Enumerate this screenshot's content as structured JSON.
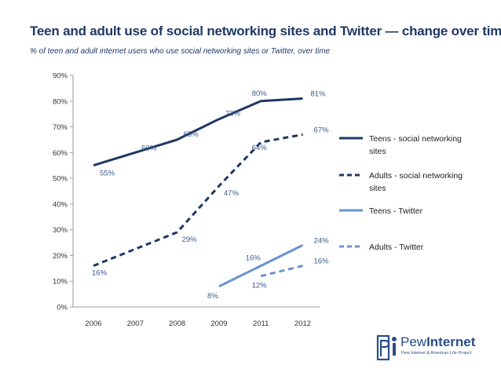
{
  "chart_data": {
    "type": "line",
    "title": "Teen and adult use of social networking sites and Twitter — change over time",
    "subtitle": "% of teen and adult internet users who use social networking sites or Twitter, over time",
    "categories": [
      "2006",
      "2007",
      "2008",
      "2009",
      "2011",
      "2012"
    ],
    "ylim": [
      0,
      90
    ],
    "yticks": [
      "0%",
      "10%",
      "20%",
      "30%",
      "40%",
      "50%",
      "60%",
      "70%",
      "80%",
      "90%"
    ],
    "xlabel": "",
    "ylabel": "",
    "legend_position": "right",
    "series": [
      {
        "name": "Teens - social networking sites",
        "legend_lines": [
          "Teens - social networking",
          "sites"
        ],
        "color": "#1f3864",
        "dash": "solid",
        "values": [
          55,
          60,
          65,
          73,
          80,
          81
        ],
        "labels": [
          "55%",
          "60%",
          "65%",
          "73%",
          "80%",
          "81%"
        ]
      },
      {
        "name": "Adults - social networking sites",
        "legend_lines": [
          "Adults - social networking",
          "sites"
        ],
        "color": "#1f3864",
        "dash": "dashed",
        "values": [
          16,
          null,
          29,
          47,
          64,
          67
        ],
        "labels": [
          "16%",
          null,
          "29%",
          "47%",
          "64%",
          "67%"
        ]
      },
      {
        "name": "Teens - Twitter",
        "legend_lines": [
          "Teens - Twitter"
        ],
        "color": "#6b93cf",
        "dash": "solid",
        "values": [
          null,
          null,
          null,
          8,
          16,
          24
        ],
        "labels": [
          null,
          null,
          null,
          "8%",
          "16%",
          "24%"
        ]
      },
      {
        "name": "Adults - Twitter",
        "legend_lines": [
          "Adults - Twitter"
        ],
        "color": "#6b93cf",
        "dash": "dashed",
        "values": [
          null,
          null,
          null,
          null,
          12,
          16
        ],
        "labels": [
          null,
          null,
          null,
          null,
          "12%",
          "16%"
        ]
      }
    ]
  },
  "logo": {
    "brand_regular": "Pew",
    "brand_bold": "Internet",
    "tagline": "Pew Internet & American Life Project",
    "color": "#2a4e8a"
  }
}
